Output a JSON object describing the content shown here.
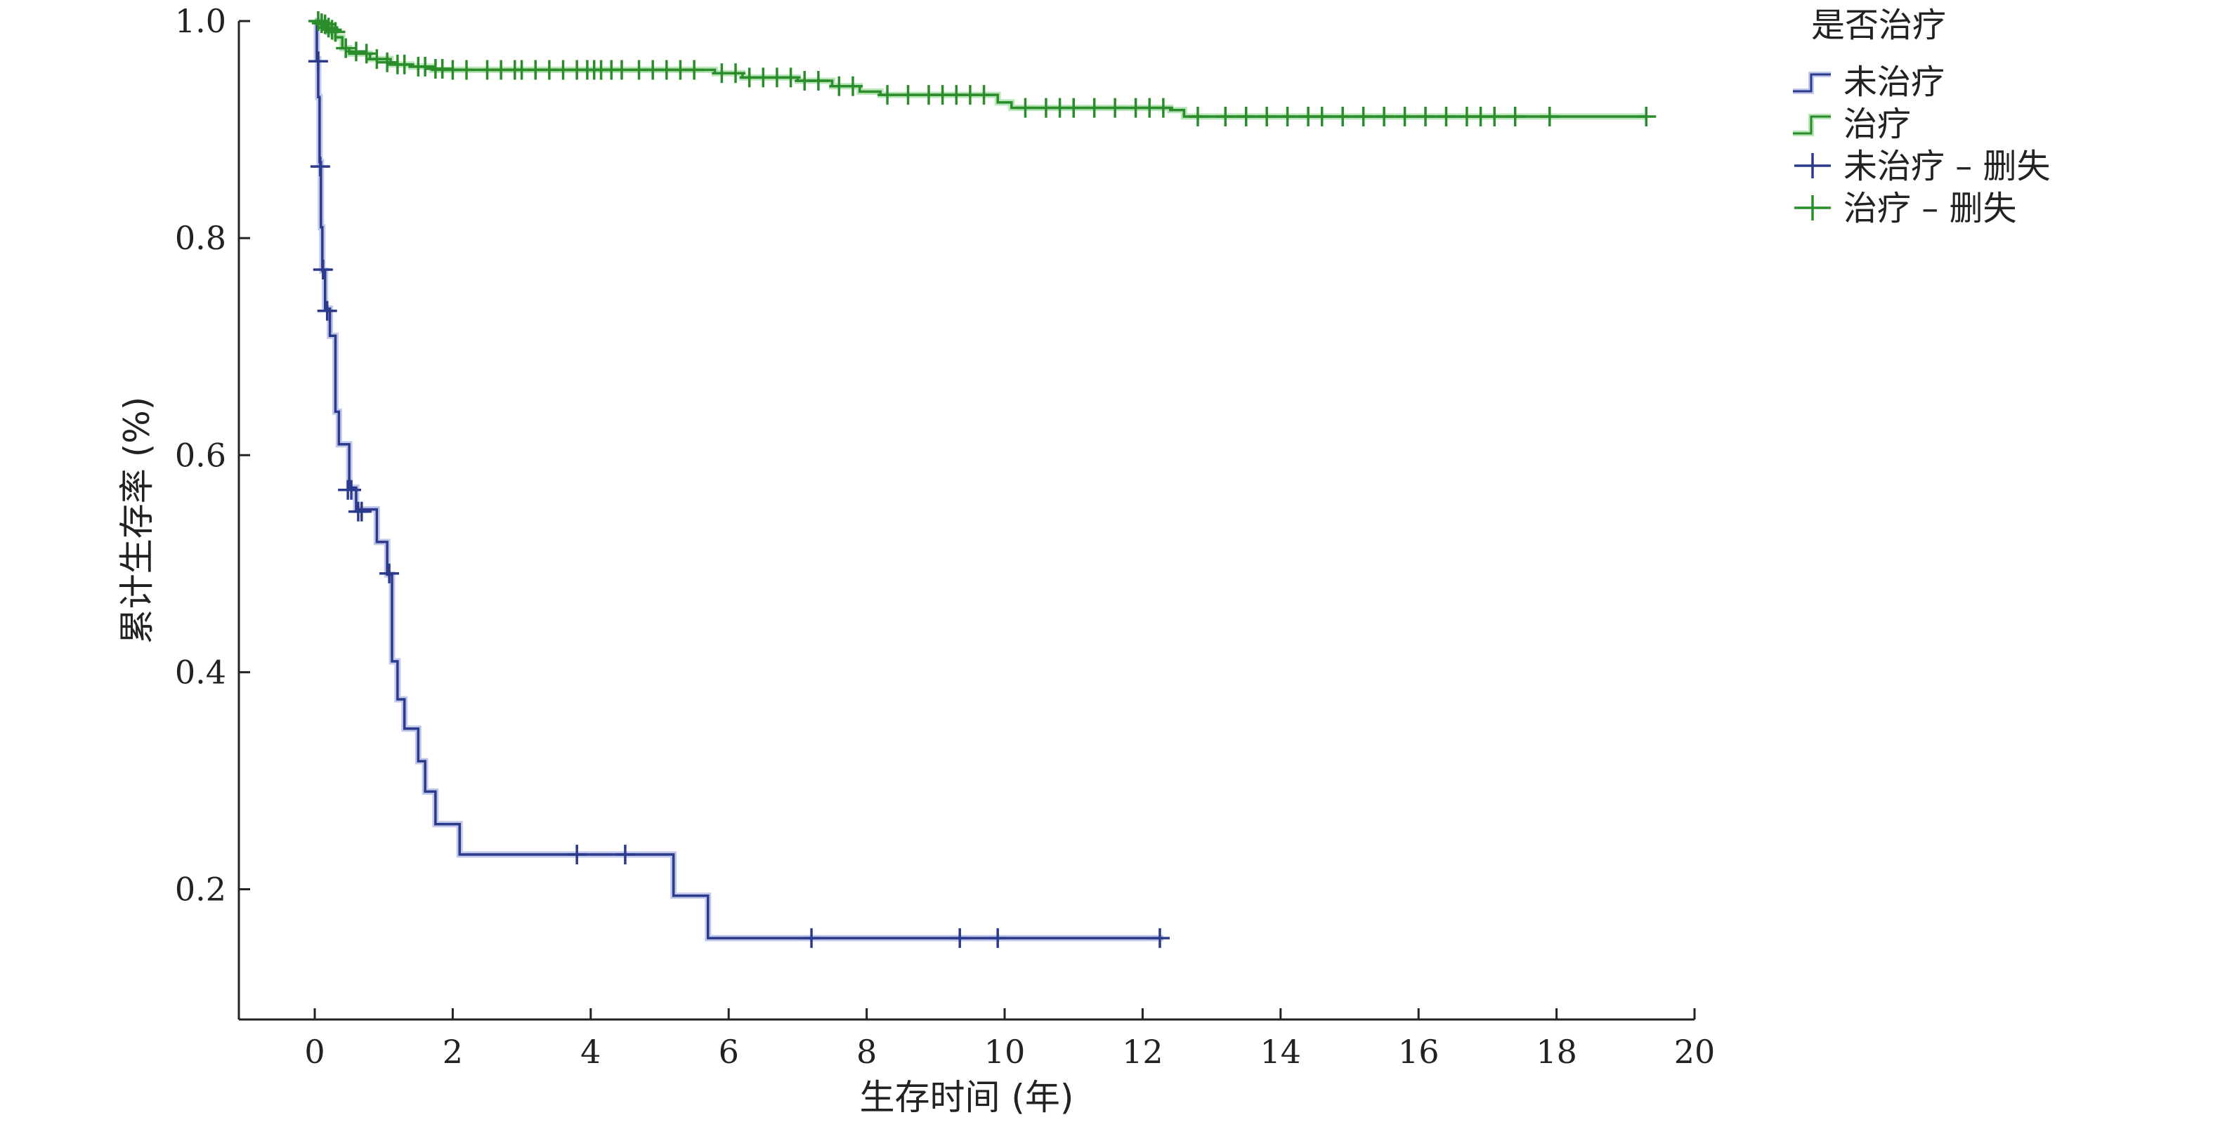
{
  "chart_data": {
    "type": "line",
    "subtype": "kaplan-meier-step",
    "title": "",
    "xlabel": "生存时间 (年)",
    "ylabel": "累计生存率 (%)",
    "xlim": [
      -1.1,
      20.0
    ],
    "ylim": [
      0.08,
      1.0
    ],
    "x_ticks": [
      0,
      2,
      4,
      6,
      8,
      10,
      12,
      14,
      16,
      18,
      20
    ],
    "x_tick_labels": [
      "0",
      "2",
      "4",
      "6",
      "8",
      "10",
      "12",
      "14",
      "16",
      "18",
      "20"
    ],
    "y_ticks": [
      0.2,
      0.4,
      0.6,
      0.8,
      1.0
    ],
    "y_tick_labels": [
      "0.2",
      "0.4",
      "0.6",
      "0.8",
      "1.0"
    ],
    "grid": false,
    "legend": {
      "title": "是否治疗",
      "placement": "top-right-outside",
      "entries": [
        {
          "label": "未治疗",
          "kind": "step",
          "series": 0
        },
        {
          "label": "治疗",
          "kind": "step",
          "series": 1
        },
        {
          "label": "未治疗 – 删失",
          "kind": "censor",
          "series": 0
        },
        {
          "label": "治疗 – 删失",
          "kind": "censor",
          "series": 1
        }
      ]
    },
    "series": [
      {
        "name": "未治疗",
        "color": "#2b3a8c",
        "halo_color": "#8e9bd8",
        "steps": [
          [
            0.0,
            1.0
          ],
          [
            0.03,
            0.965
          ],
          [
            0.05,
            0.93
          ],
          [
            0.07,
            0.87
          ],
          [
            0.09,
            0.81
          ],
          [
            0.11,
            0.77
          ],
          [
            0.15,
            0.735
          ],
          [
            0.22,
            0.71
          ],
          [
            0.3,
            0.64
          ],
          [
            0.35,
            0.61
          ],
          [
            0.5,
            0.57
          ],
          [
            0.6,
            0.55
          ],
          [
            0.9,
            0.52
          ],
          [
            1.05,
            0.49
          ],
          [
            1.12,
            0.41
          ],
          [
            1.2,
            0.375
          ],
          [
            1.3,
            0.348
          ],
          [
            1.5,
            0.318
          ],
          [
            1.6,
            0.29
          ],
          [
            1.75,
            0.26
          ],
          [
            2.1,
            0.232
          ],
          [
            5.2,
            0.194
          ],
          [
            5.7,
            0.155
          ],
          [
            12.3,
            0.155
          ]
        ],
        "censored": [
          [
            0.05,
            0.963
          ],
          [
            0.08,
            0.866
          ],
          [
            0.12,
            0.771
          ],
          [
            0.18,
            0.733
          ],
          [
            0.48,
            0.568
          ],
          [
            0.53,
            0.568
          ],
          [
            0.63,
            0.548
          ],
          [
            0.68,
            0.548
          ],
          [
            1.08,
            0.491
          ],
          [
            3.8,
            0.232
          ],
          [
            4.5,
            0.232
          ],
          [
            7.2,
            0.155
          ],
          [
            9.35,
            0.155
          ],
          [
            9.9,
            0.155
          ],
          [
            12.25,
            0.155
          ]
        ]
      },
      {
        "name": "治疗",
        "color": "#2b8c2b",
        "halo_color": "#7fd27f",
        "steps": [
          [
            0.0,
            1.0
          ],
          [
            0.1,
            0.995
          ],
          [
            0.2,
            0.99
          ],
          [
            0.3,
            0.985
          ],
          [
            0.4,
            0.975
          ],
          [
            0.5,
            0.97
          ],
          [
            0.8,
            0.965
          ],
          [
            1.1,
            0.96
          ],
          [
            1.4,
            0.958
          ],
          [
            1.7,
            0.955
          ],
          [
            5.8,
            0.952
          ],
          [
            6.2,
            0.948
          ],
          [
            7.0,
            0.945
          ],
          [
            7.5,
            0.94
          ],
          [
            7.9,
            0.935
          ],
          [
            8.2,
            0.932
          ],
          [
            9.9,
            0.925
          ],
          [
            10.1,
            0.92
          ],
          [
            12.4,
            0.918
          ],
          [
            12.6,
            0.912
          ],
          [
            19.3,
            0.912
          ]
        ],
        "censored": [
          [
            0.05,
            1.0
          ],
          [
            0.1,
            0.998
          ],
          [
            0.15,
            0.997
          ],
          [
            0.2,
            0.994
          ],
          [
            0.25,
            0.992
          ],
          [
            0.3,
            0.99
          ],
          [
            0.45,
            0.975
          ],
          [
            0.6,
            0.972
          ],
          [
            0.75,
            0.97
          ],
          [
            0.9,
            0.965
          ],
          [
            1.05,
            0.962
          ],
          [
            1.2,
            0.96
          ],
          [
            1.3,
            0.96
          ],
          [
            1.5,
            0.958
          ],
          [
            1.6,
            0.958
          ],
          [
            1.75,
            0.956
          ],
          [
            1.85,
            0.956
          ],
          [
            2.0,
            0.955
          ],
          [
            2.2,
            0.955
          ],
          [
            2.5,
            0.955
          ],
          [
            2.7,
            0.955
          ],
          [
            2.9,
            0.955
          ],
          [
            3.0,
            0.955
          ],
          [
            3.2,
            0.955
          ],
          [
            3.4,
            0.955
          ],
          [
            3.6,
            0.955
          ],
          [
            3.8,
            0.955
          ],
          [
            3.95,
            0.955
          ],
          [
            4.05,
            0.955
          ],
          [
            4.15,
            0.955
          ],
          [
            4.3,
            0.955
          ],
          [
            4.45,
            0.955
          ],
          [
            4.7,
            0.955
          ],
          [
            4.9,
            0.955
          ],
          [
            5.1,
            0.955
          ],
          [
            5.3,
            0.955
          ],
          [
            5.5,
            0.955
          ],
          [
            5.9,
            0.952
          ],
          [
            6.1,
            0.952
          ],
          [
            6.3,
            0.948
          ],
          [
            6.5,
            0.948
          ],
          [
            6.7,
            0.948
          ],
          [
            6.9,
            0.948
          ],
          [
            7.1,
            0.945
          ],
          [
            7.3,
            0.945
          ],
          [
            7.6,
            0.94
          ],
          [
            7.8,
            0.94
          ],
          [
            8.3,
            0.932
          ],
          [
            8.6,
            0.932
          ],
          [
            8.9,
            0.932
          ],
          [
            9.1,
            0.932
          ],
          [
            9.3,
            0.932
          ],
          [
            9.5,
            0.932
          ],
          [
            9.7,
            0.932
          ],
          [
            10.3,
            0.92
          ],
          [
            10.6,
            0.92
          ],
          [
            10.8,
            0.92
          ],
          [
            11.0,
            0.92
          ],
          [
            11.3,
            0.92
          ],
          [
            11.6,
            0.92
          ],
          [
            11.9,
            0.92
          ],
          [
            12.1,
            0.92
          ],
          [
            12.3,
            0.92
          ],
          [
            12.8,
            0.912
          ],
          [
            13.2,
            0.912
          ],
          [
            13.5,
            0.912
          ],
          [
            13.8,
            0.912
          ],
          [
            14.1,
            0.912
          ],
          [
            14.4,
            0.912
          ],
          [
            14.6,
            0.912
          ],
          [
            14.9,
            0.912
          ],
          [
            15.2,
            0.912
          ],
          [
            15.5,
            0.912
          ],
          [
            15.8,
            0.912
          ],
          [
            16.1,
            0.912
          ],
          [
            16.4,
            0.912
          ],
          [
            16.7,
            0.912
          ],
          [
            16.9,
            0.912
          ],
          [
            17.1,
            0.912
          ],
          [
            17.4,
            0.912
          ],
          [
            17.9,
            0.912
          ],
          [
            19.3,
            0.912
          ]
        ]
      }
    ]
  }
}
